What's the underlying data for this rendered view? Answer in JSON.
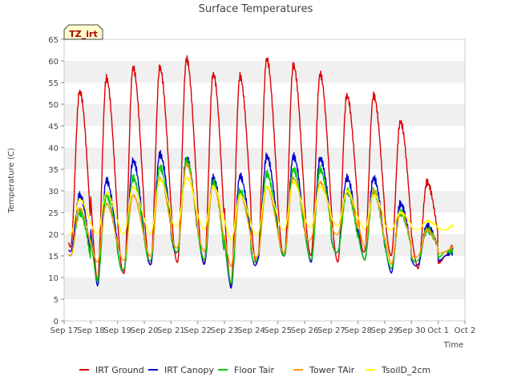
{
  "chart_data": {
    "type": "line",
    "title": "Surface Temperatures",
    "xlabel": "Time",
    "ylabel": "Temperature (C)",
    "badge": "TZ_irt",
    "ylim": [
      0,
      65
    ],
    "yticks": [
      0,
      5,
      10,
      15,
      20,
      25,
      30,
      35,
      40,
      45,
      50,
      55,
      60,
      65
    ],
    "xlim": [
      "2023-09-17",
      "2023-10-02"
    ],
    "xticks": [
      "Sep 17",
      "Sep 18",
      "Sep 19",
      "Sep 20",
      "Sep 21",
      "Sep 22",
      "Sep 23",
      "Sep 24",
      "Sep 25",
      "Sep 26",
      "Sep 27",
      "Sep 28",
      "Sep 29",
      "Sep 30",
      "Oct 1",
      "Oct 2"
    ],
    "grid": "horizontal bands",
    "legend_position": "bottom",
    "x_start": "2023-09-17",
    "series": [
      {
        "name": "IRT Ground",
        "color": "#dd0000",
        "min": [
          17,
          9,
          11,
          13,
          13.5,
          13,
          8,
          14,
          15,
          15,
          13.5,
          16,
          15,
          12,
          15
        ],
        "max": [
          53,
          56,
          58.5,
          58.5,
          60.5,
          57,
          56.5,
          60.5,
          59,
          57,
          52,
          52,
          46,
          32,
          17
        ]
      },
      {
        "name": "IRT Canopy",
        "color": "#0000cc",
        "min": [
          16,
          8,
          12,
          13,
          16,
          13,
          7.5,
          14,
          15,
          13.5,
          16,
          14,
          11,
          13,
          15
        ],
        "max": [
          29,
          32.5,
          37,
          38.5,
          37.5,
          33,
          33.5,
          38,
          38,
          37.5,
          33,
          33,
          27,
          22,
          16
        ]
      },
      {
        "name": "Floor Tair",
        "color": "#00cc00",
        "min": [
          15,
          9,
          12,
          14,
          16,
          14,
          8.5,
          15,
          15,
          14,
          16,
          14,
          12,
          14,
          16
        ],
        "max": [
          25,
          29,
          33,
          35.5,
          37,
          32,
          30,
          34,
          35,
          35,
          30,
          30,
          25,
          21,
          16
        ]
      },
      {
        "name": "Tower TAir",
        "color": "#ff9900",
        "min": [
          15,
          13.5,
          14,
          15,
          17,
          16,
          12.5,
          15,
          16,
          19,
          20,
          17,
          13,
          15,
          16
        ],
        "max": [
          26,
          27,
          29,
          33,
          36,
          31,
          29,
          31,
          33,
          32,
          30,
          30,
          25,
          21,
          17
        ]
      },
      {
        "name": "TsoilD_2cm",
        "color": "#ffff00",
        "min": [
          20,
          20,
          20,
          20,
          22,
          21,
          18.5,
          20,
          21,
          21.5,
          22,
          21,
          21,
          21,
          21
        ],
        "max": [
          28,
          29.5,
          31,
          32.5,
          33,
          31,
          29,
          31,
          32,
          31,
          30,
          29,
          25,
          23,
          22
        ]
      }
    ]
  }
}
